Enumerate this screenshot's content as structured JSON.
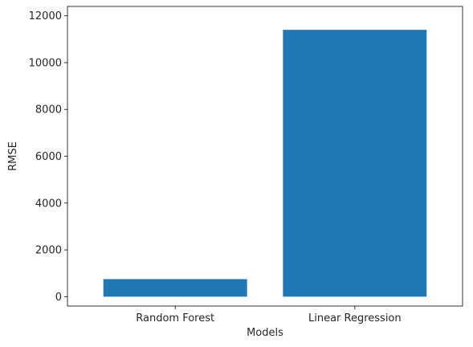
{
  "chart_data": {
    "type": "bar",
    "title": "",
    "xlabel": "Models",
    "ylabel": "RMSE",
    "categories": [
      "Random Forest",
      "Linear Regression"
    ],
    "values": [
      750,
      11400
    ],
    "ylim": [
      -400,
      12400
    ],
    "yticks": [
      0,
      2000,
      4000,
      6000,
      8000,
      10000,
      12000
    ],
    "grid": false,
    "legend": "none",
    "bar_color": "#1f77b4"
  }
}
